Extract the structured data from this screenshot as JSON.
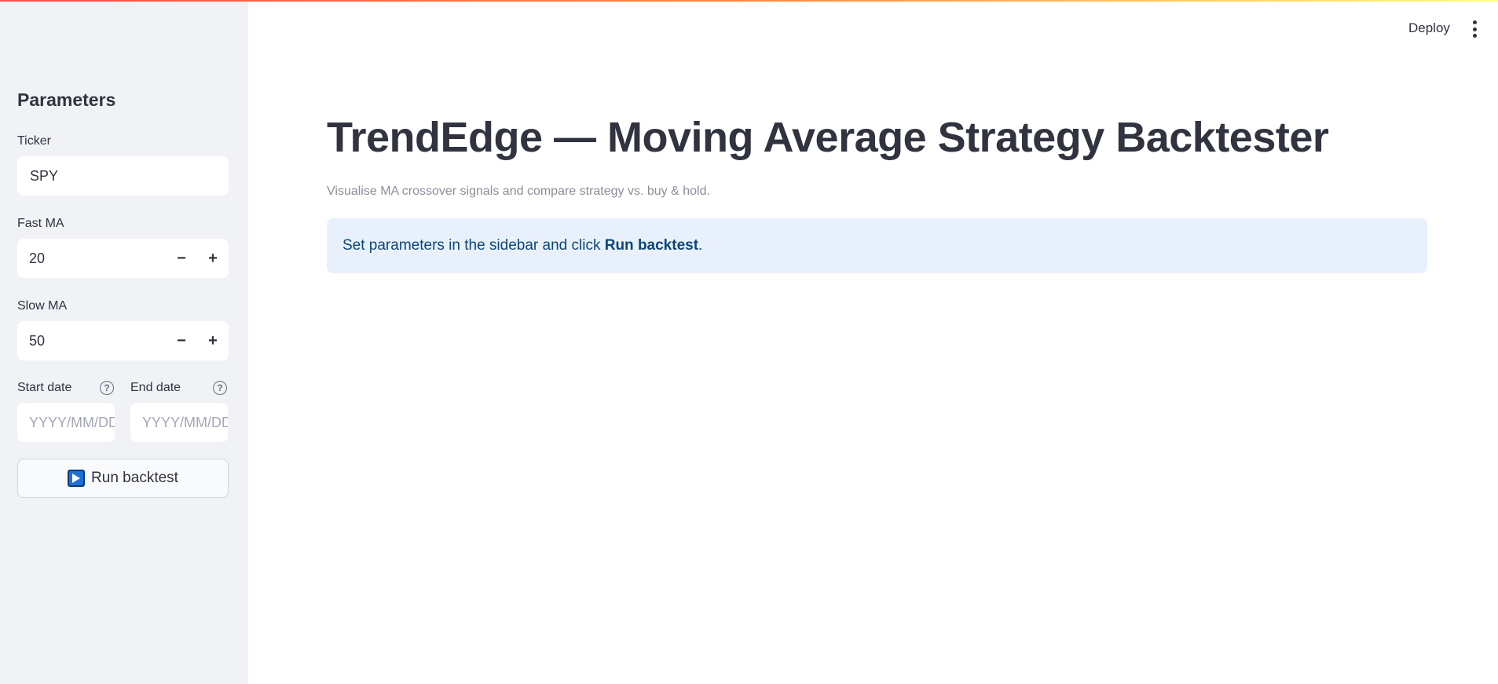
{
  "header": {
    "deploy_label": "Deploy",
    "menu_icon": "kebab-menu-icon"
  },
  "sidebar": {
    "title": "Parameters",
    "ticker": {
      "label": "Ticker",
      "value": "SPY"
    },
    "fast_ma": {
      "label": "Fast MA",
      "value": "20",
      "decrement": "−",
      "increment": "+"
    },
    "slow_ma": {
      "label": "Slow MA",
      "value": "50",
      "decrement": "−",
      "increment": "+"
    },
    "start_date": {
      "label": "Start date",
      "placeholder": "YYYY/MM/DD",
      "help": "?"
    },
    "end_date": {
      "label": "End date",
      "placeholder": "YYYY/MM/DD",
      "help": "?"
    },
    "run_button": {
      "label": "Run backtest",
      "icon": "play-button-icon"
    }
  },
  "main": {
    "title": "TrendEdge — Moving Average Strategy Backtester",
    "caption": "Visualise MA crossover signals and compare strategy vs. buy & hold.",
    "info": {
      "prefix": "Set parameters in the sidebar and click ",
      "bold": "Run backtest",
      "suffix": "."
    }
  },
  "colors": {
    "sidebar_bg": "#f0f2f6",
    "info_bg": "#e8f1fb",
    "info_text": "#0d4579",
    "accent_gradient_start": "#ff4b4b",
    "accent_gradient_end": "#fffd80"
  }
}
